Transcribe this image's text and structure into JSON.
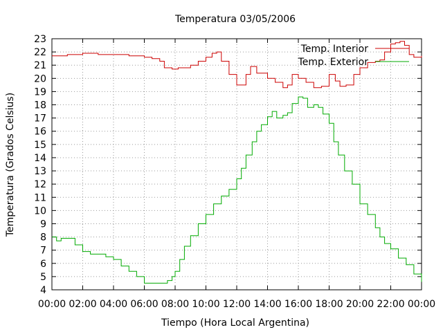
{
  "chart_data": {
    "type": "line",
    "title": "Temperatura 03/05/2006",
    "xlabel": "Tiempo (Hora Local Argentina)",
    "ylabel": "Temperatura (Grados Celsius)",
    "xlim": [
      0,
      24
    ],
    "ylim": [
      4,
      23
    ],
    "x_ticks": [
      "00:00",
      "02:00",
      "04:00",
      "06:00",
      "08:00",
      "10:00",
      "12:00",
      "14:00",
      "16:00",
      "18:00",
      "20:00",
      "22:00",
      "00:00"
    ],
    "y_ticks": [
      "4",
      "5",
      "6",
      "7",
      "8",
      "9",
      "10",
      "11",
      "12",
      "13",
      "14",
      "15",
      "16",
      "17",
      "18",
      "19",
      "20",
      "21",
      "22",
      "23"
    ],
    "grid": true,
    "legend_position": "top-right",
    "series": [
      {
        "name": "Temp. Interior",
        "color": "#cc0000",
        "x": [
          0,
          0.5,
          1,
          2,
          3,
          4,
          5,
          6,
          6.5,
          7,
          7.3,
          7.8,
          8.2,
          9,
          9.5,
          10,
          10.4,
          10.7,
          11,
          11.5,
          12,
          12.3,
          12.6,
          12.9,
          13.3,
          14,
          14.5,
          15,
          15.3,
          15.6,
          16,
          16.5,
          17,
          17.5,
          18,
          18.4,
          18.7,
          19.1,
          19.6,
          20,
          20.5,
          21,
          21.3,
          21.6,
          22,
          22.3,
          22.6,
          22.9,
          23.2,
          23.5,
          24
        ],
        "y": [
          21.7,
          21.7,
          21.8,
          21.9,
          21.8,
          21.8,
          21.7,
          21.6,
          21.5,
          21.3,
          20.8,
          20.7,
          20.8,
          21.0,
          21.3,
          21.6,
          21.9,
          22.0,
          21.3,
          20.3,
          19.5,
          19.5,
          20.3,
          20.9,
          20.4,
          20.0,
          19.7,
          19.3,
          19.5,
          20.3,
          20.0,
          19.7,
          19.3,
          19.4,
          20.3,
          19.8,
          19.4,
          19.5,
          20.3,
          20.8,
          21.2,
          21.3,
          21.4,
          22.0,
          22.6,
          22.7,
          22.8,
          22.5,
          21.8,
          21.6,
          21.7
        ]
      },
      {
        "name": "Temp. Exterior",
        "color": "#00aa00",
        "x": [
          0,
          0.3,
          0.6,
          1,
          1.5,
          2,
          2.5,
          3,
          3.5,
          4,
          4.5,
          5,
          5.5,
          6,
          6.5,
          7,
          7.5,
          7.8,
          8,
          8.3,
          8.6,
          9,
          9.5,
          10,
          10.5,
          11,
          11.5,
          12,
          12.3,
          12.6,
          13,
          13.3,
          13.6,
          14,
          14.3,
          14.6,
          15,
          15.3,
          15.6,
          16,
          16.3,
          16.6,
          17,
          17.3,
          17.6,
          18,
          18.3,
          18.6,
          19,
          19.5,
          20,
          20.5,
          21,
          21.3,
          21.6,
          22,
          22.5,
          23,
          23.5,
          24
        ],
        "y": [
          8.0,
          7.7,
          7.9,
          7.9,
          7.4,
          6.9,
          6.7,
          6.7,
          6.5,
          6.3,
          5.8,
          5.4,
          5.0,
          4.5,
          4.5,
          4.5,
          4.7,
          5.0,
          5.4,
          6.3,
          7.3,
          8.1,
          9.0,
          9.7,
          10.5,
          11.1,
          11.6,
          12.4,
          13.2,
          14.2,
          15.2,
          16.0,
          16.5,
          17.1,
          17.5,
          17.0,
          17.2,
          17.4,
          18.1,
          18.6,
          18.5,
          17.8,
          18.0,
          17.8,
          17.3,
          16.6,
          15.2,
          14.2,
          13.0,
          12.0,
          10.5,
          9.7,
          8.7,
          8.0,
          7.5,
          7.1,
          6.4,
          5.9,
          5.2,
          4.6
        ]
      }
    ]
  }
}
